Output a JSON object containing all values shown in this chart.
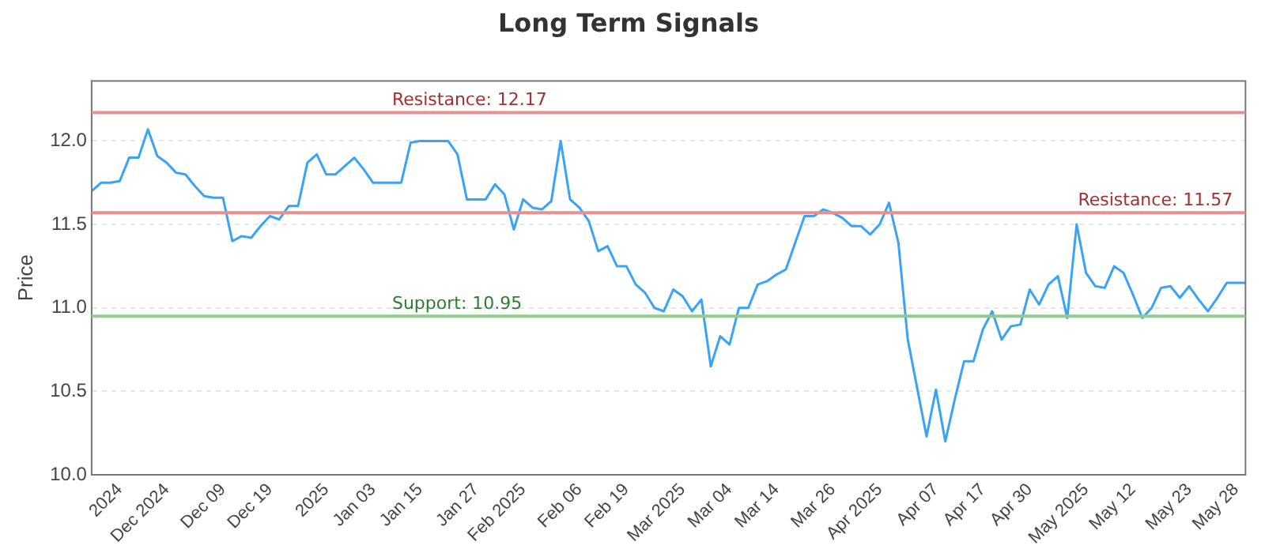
{
  "chart_data": {
    "type": "line",
    "title": "Long Term Signals",
    "ylabel": "Price",
    "categories": [
      null,
      null,
      null,
      "2024",
      null,
      null,
      null,
      null,
      "Dec 2024",
      null,
      null,
      null,
      null,
      null,
      "Dec 09",
      null,
      null,
      null,
      null,
      "Dec 19",
      null,
      null,
      null,
      null,
      null,
      "2025",
      null,
      null,
      null,
      null,
      "Jan 03",
      null,
      null,
      null,
      null,
      "Jan 15",
      null,
      null,
      null,
      null,
      null,
      "Jan 27",
      null,
      null,
      null,
      null,
      "Feb 2025",
      null,
      null,
      null,
      null,
      null,
      "Feb 06",
      null,
      null,
      null,
      null,
      "Feb 19",
      null,
      null,
      null,
      null,
      null,
      "Mar 2025",
      null,
      null,
      null,
      null,
      "Mar 04",
      null,
      null,
      null,
      null,
      "Mar 14",
      null,
      null,
      null,
      null,
      null,
      "Mar 26",
      null,
      null,
      null,
      null,
      "Apr 2025",
      null,
      null,
      null,
      null,
      null,
      "Apr 07",
      null,
      null,
      null,
      null,
      "Apr 17",
      null,
      null,
      null,
      null,
      "Apr 30",
      null,
      null,
      null,
      null,
      null,
      "May 2025",
      null,
      null,
      null,
      null,
      "May 12",
      null,
      null,
      null,
      null,
      null,
      "May 23",
      null,
      null,
      null,
      null,
      "May 28",
      null
    ],
    "series": [
      {
        "color": "#3aa3f5",
        "values": [
          11.7,
          11.75,
          11.75,
          11.76,
          11.9,
          11.9,
          12.07,
          11.91,
          11.87,
          11.81,
          11.8,
          11.73,
          11.67,
          11.66,
          11.66,
          11.4,
          11.43,
          11.42,
          11.49,
          11.55,
          11.53,
          11.61,
          11.61,
          11.87,
          11.92,
          11.8,
          11.8,
          11.85,
          11.9,
          11.83,
          11.75,
          11.75,
          11.75,
          11.75,
          11.99,
          12.0,
          12.0,
          12.0,
          12.0,
          11.92,
          11.65,
          11.65,
          11.65,
          11.74,
          11.68,
          11.47,
          11.65,
          11.6,
          11.59,
          11.64,
          12.0,
          11.65,
          11.6,
          11.52,
          11.34,
          11.37,
          11.25,
          11.25,
          11.14,
          11.09,
          11.0,
          10.98,
          11.11,
          11.07,
          10.98,
          11.05,
          10.65,
          10.83,
          10.78,
          11.0,
          11.0,
          11.14,
          11.16,
          11.2,
          11.23,
          11.39,
          11.55,
          11.55,
          11.59,
          11.57,
          11.54,
          11.49,
          11.49,
          11.44,
          11.5,
          11.63,
          11.39,
          10.81,
          10.52,
          10.23,
          10.51,
          10.2,
          10.45,
          10.68,
          10.68,
          10.87,
          10.98,
          10.81,
          10.89,
          10.9,
          11.11,
          11.02,
          11.14,
          11.19,
          10.94,
          11.5,
          11.21,
          11.13,
          11.12,
          11.25,
          11.21,
          11.08,
          10.94,
          11.0,
          11.12,
          11.13,
          11.06,
          11.13,
          11.05,
          10.98,
          11.06,
          11.15,
          11.15,
          11.15
        ]
      }
    ],
    "ylim": [
      10,
      12.36
    ],
    "yticks": [
      {
        "value": 10,
        "label": "10.0"
      },
      {
        "value": 10.5,
        "label": "10.5"
      },
      {
        "value": 11,
        "label": "11.0"
      },
      {
        "value": 11.5,
        "label": "11.5"
      },
      {
        "value": 12,
        "label": "12.0"
      }
    ],
    "ref_lines": [
      {
        "axis": "y",
        "value": 12.17,
        "label": "Resistance: 12.17",
        "color": "#e89090"
      },
      {
        "axis": "y",
        "value": 11.57,
        "label": "Resistance: 11.57",
        "color": "#e89090"
      },
      {
        "axis": "y",
        "value": 10.95,
        "label": "Support: 10.95",
        "color": "#90cc90"
      }
    ],
    "grid": "y",
    "legend": false,
    "marker": "none",
    "line_style": "solid"
  }
}
